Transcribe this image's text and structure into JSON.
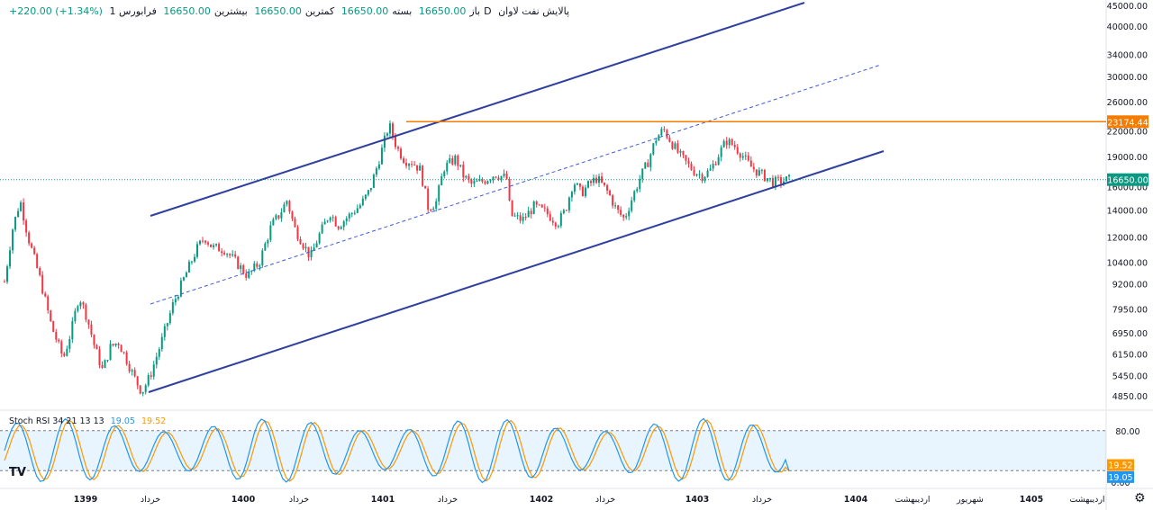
{
  "header": {
    "symbol_name": "پالایش نفت لاوان",
    "interval": "1D",
    "exchange": "فرابورس",
    "open_label": "باز",
    "open_value": "16650.00",
    "high_label": "بیشترین",
    "high_value": "16650.00",
    "low_label": "کمترین",
    "low_value": "16650.00",
    "close_label": "بسته",
    "close_value": "16650.00",
    "change": "+220.00 (+1.34%)"
  },
  "chart_data": {
    "type": "candlestick",
    "price_axis_ticks": [
      45000,
      40000,
      34000,
      30000,
      26000,
      22000,
      19000,
      16000,
      14000,
      12000,
      10400,
      9200,
      7950,
      6950,
      6150,
      5450,
      4850
    ],
    "price_axis_tick_labels": [
      "45000.00",
      "40000.00",
      "34000.00",
      "30000.00",
      "26000.00",
      "22000.00",
      "19000.00",
      "16000.00",
      "14000.00",
      "12000.00",
      "10400.00",
      "9200.00",
      "7950.00",
      "6950.00",
      "6150.00",
      "5450.00",
      "4850.00"
    ],
    "log_scale": true,
    "price_range": [
      4500,
      46000
    ],
    "time_axis_labels": [
      "1399",
      "خرداد",
      "1400",
      "خرداد",
      "1401",
      "خرداد",
      "1402",
      "خرداد",
      "1403",
      "خرداد",
      "1404",
      "اردیبهشت",
      "شهریور",
      "1405",
      "اردیبهشت"
    ],
    "current_price_label": "16650.00",
    "current_price": 16650,
    "horizontal_level_label": "23174.44",
    "horizontal_level": 23174.44,
    "price_path": [
      [
        0,
        9300
      ],
      [
        0.01,
        12500
      ],
      [
        0.02,
        14800
      ],
      [
        0.03,
        12000
      ],
      [
        0.045,
        9500
      ],
      [
        0.06,
        7200
      ],
      [
        0.075,
        6000
      ],
      [
        0.085,
        7000
      ],
      [
        0.095,
        8600
      ],
      [
        0.105,
        7600
      ],
      [
        0.115,
        6400
      ],
      [
        0.125,
        5600
      ],
      [
        0.135,
        6400
      ],
      [
        0.145,
        6600
      ],
      [
        0.155,
        6000
      ],
      [
        0.165,
        5400
      ],
      [
        0.175,
        4950
      ],
      [
        0.185,
        5400
      ],
      [
        0.2,
        6600
      ],
      [
        0.215,
        8200
      ],
      [
        0.23,
        9600
      ],
      [
        0.245,
        11200
      ],
      [
        0.255,
        12000
      ],
      [
        0.265,
        11300
      ],
      [
        0.28,
        11200
      ],
      [
        0.295,
        10400
      ],
      [
        0.31,
        9600
      ],
      [
        0.325,
        10400
      ],
      [
        0.34,
        12800
      ],
      [
        0.35,
        13600
      ],
      [
        0.36,
        14800
      ],
      [
        0.37,
        12600
      ],
      [
        0.38,
        11600
      ],
      [
        0.39,
        10700
      ],
      [
        0.4,
        12000
      ],
      [
        0.415,
        13800
      ],
      [
        0.425,
        12800
      ],
      [
        0.44,
        13600
      ],
      [
        0.455,
        14500
      ],
      [
        0.465,
        15600
      ],
      [
        0.475,
        18000
      ],
      [
        0.485,
        21000
      ],
      [
        0.49,
        22800
      ],
      [
        0.5,
        20000
      ],
      [
        0.51,
        18600
      ],
      [
        0.52,
        18400
      ],
      [
        0.53,
        17600
      ],
      [
        0.54,
        14200
      ],
      [
        0.55,
        14600
      ],
      [
        0.56,
        17800
      ],
      [
        0.575,
        18800
      ],
      [
        0.585,
        17000
      ],
      [
        0.595,
        16200
      ],
      [
        0.61,
        16500
      ],
      [
        0.625,
        17200
      ],
      [
        0.64,
        16800
      ],
      [
        0.645,
        13600
      ],
      [
        0.66,
        13200
      ],
      [
        0.675,
        14300
      ],
      [
        0.69,
        13800
      ],
      [
        0.705,
        13000
      ],
      [
        0.715,
        14000
      ],
      [
        0.725,
        16500
      ],
      [
        0.735,
        15400
      ],
      [
        0.745,
        16200
      ],
      [
        0.755,
        16800
      ],
      [
        0.77,
        15400
      ],
      [
        0.78,
        14000
      ],
      [
        0.79,
        13300
      ],
      [
        0.8,
        15000
      ],
      [
        0.81,
        16800
      ],
      [
        0.82,
        18400
      ],
      [
        0.83,
        21000
      ],
      [
        0.84,
        22200
      ],
      [
        0.85,
        20600
      ],
      [
        0.86,
        19200
      ],
      [
        0.87,
        18200
      ],
      [
        0.88,
        17400
      ],
      [
        0.89,
        17000
      ],
      [
        0.9,
        17600
      ],
      [
        0.91,
        19200
      ],
      [
        0.92,
        20800
      ],
      [
        0.93,
        20200
      ],
      [
        0.94,
        19200
      ],
      [
        0.95,
        18000
      ],
      [
        0.96,
        17400
      ],
      [
        0.97,
        16900
      ],
      [
        0.98,
        16400
      ],
      [
        1.0,
        16650
      ]
    ],
    "stoch_rsi": {
      "label": "Stoch RSI",
      "params": "34 21 13 13",
      "k_value": "19.05",
      "d_value": "19.52",
      "k_current": 19.05,
      "d_current": 19.52,
      "upper_band": 80,
      "lower_band": 20,
      "axis_ticks": [
        "80.00",
        "0.00"
      ],
      "range": [
        0,
        100
      ]
    },
    "k_color": "#2196f3",
    "d_color": "#ff9800"
  },
  "colors": {
    "up": "#089981",
    "down": "#f23645",
    "channel": "#2f3f9e",
    "level": "#f57c00",
    "current": "#089981"
  }
}
